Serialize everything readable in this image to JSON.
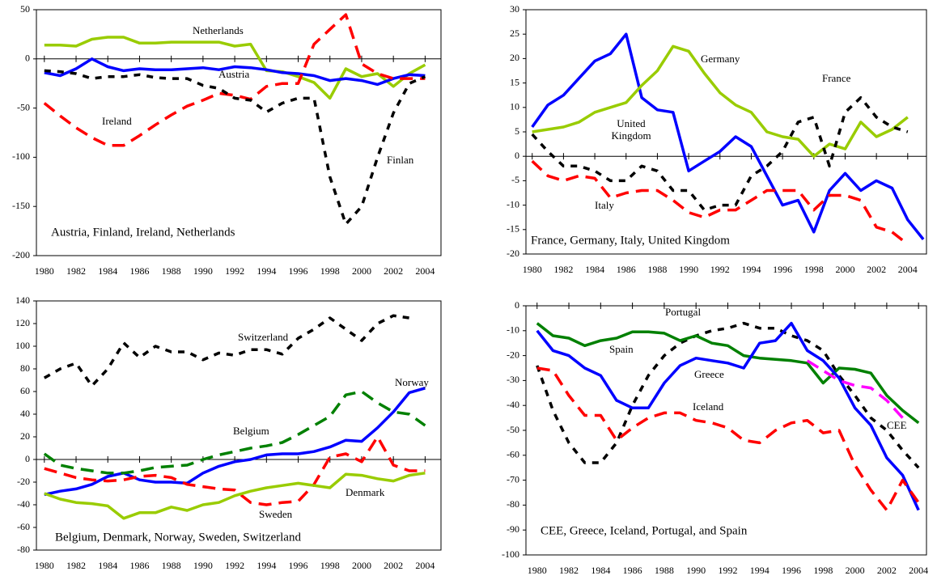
{
  "chart_data": [
    {
      "type": "line",
      "title": "Austria, Finland, Ireland, Netherlands",
      "x": [
        1980,
        1981,
        1982,
        1983,
        1984,
        1985,
        1986,
        1987,
        1988,
        1989,
        1990,
        1991,
        1992,
        1993,
        1994,
        1995,
        1996,
        1997,
        1998,
        1999,
        2000,
        2001,
        2002,
        2003,
        2004
      ],
      "xlim": [
        1979.5,
        2005
      ],
      "xticks": [
        1980,
        1982,
        1984,
        1986,
        1988,
        1990,
        1992,
        1994,
        1996,
        1998,
        2000,
        2002,
        2004
      ],
      "ylim": [
        -200,
        50
      ],
      "yticks": [
        50,
        0,
        -50,
        -100,
        -150,
        -200
      ],
      "series": [
        {
          "name": "Netherlands",
          "color": "#99cc00",
          "dashed": false,
          "values": [
            14,
            14,
            13,
            20,
            22,
            22,
            16,
            16,
            17,
            17,
            17,
            17,
            13,
            15,
            -12,
            -13,
            -18,
            -24,
            -40,
            -10,
            -18,
            -15,
            -28,
            -15,
            -6
          ]
        },
        {
          "name": "Austria",
          "color": "#0000ff",
          "dashed": false,
          "values": [
            -14,
            -17,
            -10,
            0,
            -8,
            -12,
            -10,
            -11,
            -11,
            -10,
            -9,
            -11,
            -8,
            -9,
            -11,
            -14,
            -15,
            -17,
            -22,
            -20,
            -22,
            -26,
            -20,
            -16,
            -17
          ]
        },
        {
          "name": "Ireland",
          "color": "#ff0000",
          "dashed": true,
          "values": [
            -45,
            -58,
            -70,
            -80,
            -88,
            -88,
            -78,
            -67,
            -57,
            -48,
            -42,
            -35,
            -37,
            -41,
            -28,
            -25,
            -25,
            15,
            30,
            45,
            -5,
            -15,
            -20,
            -20,
            -20
          ]
        },
        {
          "name": "Finlan",
          "color": "#000000",
          "dashed": true,
          "values": [
            -12,
            -13,
            -15,
            -20,
            -18,
            -18,
            -16,
            -19,
            -20,
            -20,
            -27,
            -30,
            -40,
            -42,
            -54,
            -45,
            -40,
            -40,
            -120,
            -168,
            -150,
            -100,
            -55,
            -25,
            -18
          ]
        }
      ]
    },
    {
      "type": "line",
      "title": "France, Germany, Italy, United Kingdom",
      "x": [
        1980,
        1981,
        1982,
        1983,
        1984,
        1985,
        1986,
        1987,
        1988,
        1989,
        1990,
        1991,
        1992,
        1993,
        1994,
        1995,
        1996,
        1997,
        1998,
        1999,
        2000,
        2001,
        2002,
        2003,
        2004,
        2005
      ],
      "xlim": [
        1979.6,
        2005.2
      ],
      "xticks": [
        1980,
        1982,
        1984,
        1986,
        1988,
        1990,
        1992,
        1994,
        1996,
        1998,
        2000,
        2002,
        2004
      ],
      "ylim": [
        -20,
        30
      ],
      "yticks": [
        30,
        25,
        20,
        15,
        10,
        5,
        0,
        -5,
        -10,
        -15,
        -20
      ],
      "series": [
        {
          "name": "United Kingdom",
          "color": "#0000ff",
          "dashed": false,
          "values": [
            6,
            10.5,
            12.5,
            16,
            19.5,
            21,
            25,
            12,
            9.5,
            9,
            -3,
            -1,
            1,
            4,
            2,
            -4,
            -10,
            -9,
            -15.5,
            -7,
            -3.5,
            -7,
            -5,
            -6.5,
            -13,
            -17
          ]
        },
        {
          "name": "Germany",
          "color": "#99cc00",
          "dashed": false,
          "values": [
            5,
            5.5,
            6,
            7,
            9,
            10,
            11,
            14.5,
            17.5,
            22.5,
            21.5,
            17,
            13,
            10.5,
            9,
            5,
            4,
            3.5,
            0,
            2.5,
            1.5,
            7,
            4,
            5.5,
            8,
            null
          ]
        },
        {
          "name": "France",
          "color": "#000000",
          "dashed": true,
          "values": [
            4.5,
            1,
            -2,
            -2,
            -3,
            -5,
            -5,
            -2,
            -3,
            -7,
            -7,
            -11,
            -10,
            -10,
            -4,
            -2,
            1,
            7,
            8,
            -2,
            9,
            12,
            8,
            6,
            5,
            null
          ]
        },
        {
          "name": "Italy",
          "color": "#ff0000",
          "dashed": true,
          "values": [
            -1,
            -4,
            -5,
            -4,
            -4.5,
            -8.5,
            -7.5,
            -7,
            -7,
            -9,
            -11.5,
            -12.5,
            -11,
            -11,
            -9,
            -7,
            -7,
            -7,
            -11,
            -8,
            -8,
            -9,
            -14.5,
            -15.5,
            -18,
            null
          ]
        }
      ]
    },
    {
      "type": "line",
      "title": "Belgium, Denmark, Norway, Sweden, Switzerland",
      "x": [
        1980,
        1981,
        1982,
        1983,
        1984,
        1985,
        1986,
        1987,
        1988,
        1989,
        1990,
        1991,
        1992,
        1993,
        1994,
        1995,
        1996,
        1997,
        1998,
        1999,
        2000,
        2001,
        2002,
        2003,
        2004
      ],
      "xlim": [
        1979.5,
        2005
      ],
      "xticks": [
        1980,
        1982,
        1984,
        1986,
        1988,
        1990,
        1992,
        1994,
        1996,
        1998,
        2000,
        2002,
        2004
      ],
      "ylim": [
        -80,
        140
      ],
      "yticks": [
        140,
        120,
        100,
        80,
        60,
        40,
        20,
        0,
        -20,
        -40,
        -60,
        -80
      ],
      "series": [
        {
          "name": "Switzerland",
          "color": "#000000",
          "dashed": true,
          "values": [
            72,
            80,
            85,
            65,
            80,
            103,
            90,
            100,
            95,
            95,
            88,
            94,
            92,
            97,
            97,
            93,
            107,
            115,
            125,
            115,
            105,
            120,
            127,
            125,
            null
          ]
        },
        {
          "name": "Norway",
          "color": "#0000ff",
          "dashed": false,
          "values": [
            -31,
            -28,
            -26,
            -22,
            -15,
            -12,
            -18,
            -20,
            -20,
            -21,
            -12,
            -6,
            -2,
            0,
            4,
            5,
            5,
            7,
            11,
            17,
            16,
            28,
            42,
            59,
            63
          ]
        },
        {
          "name": "Belgium",
          "color": "#008000",
          "dashed": true,
          "values": [
            5,
            -5,
            -8,
            -10,
            -12,
            -12,
            -10,
            -7,
            -6,
            -5,
            0,
            4,
            7,
            10,
            12,
            15,
            22,
            30,
            38,
            57,
            60,
            50,
            42,
            40,
            30
          ]
        },
        {
          "name": "Sweden",
          "color": "#ff0000",
          "dashed": true,
          "values": [
            -8,
            -12,
            -16,
            -18,
            -19,
            -18,
            -15,
            -14,
            -16,
            -22,
            -24,
            -26,
            -27,
            -38,
            -40,
            -38,
            -37,
            -22,
            2,
            5,
            -2,
            20,
            -5,
            -10,
            -10
          ]
        },
        {
          "name": "Denmark",
          "color": "#99cc00",
          "dashed": false,
          "values": [
            -30,
            -35,
            -38,
            -39,
            -41,
            -52,
            -47,
            -47,
            -42,
            -45,
            -40,
            -38,
            -32,
            -28,
            -25,
            -23,
            -21,
            -23,
            -25,
            -13,
            -14,
            -17,
            -19,
            -14,
            -12
          ]
        }
      ]
    },
    {
      "type": "line",
      "title": "CEE, Greece, Iceland, Portugal, and Spain",
      "x": [
        1980,
        1981,
        1982,
        1983,
        1984,
        1985,
        1986,
        1987,
        1988,
        1989,
        1990,
        1991,
        1992,
        1993,
        1994,
        1995,
        1996,
        1997,
        1998,
        1999,
        2000,
        2001,
        2002,
        2003,
        2004
      ],
      "xlim": [
        1979.3,
        2004.5
      ],
      "xticks": [
        1980,
        1982,
        1984,
        1986,
        1988,
        1990,
        1992,
        1994,
        1996,
        1998,
        2000,
        2002,
        2004
      ],
      "ylim": [
        -100,
        0
      ],
      "yticks": [
        0,
        -10,
        -20,
        -30,
        -40,
        -50,
        -60,
        -70,
        -80,
        -90,
        -100
      ],
      "series": [
        {
          "name": "Portugal",
          "color": "#000000",
          "dashed": true,
          "values": [
            -24,
            -42,
            -55,
            -63,
            -63,
            -55,
            -40,
            -28,
            -20,
            -15,
            -12,
            -10,
            -9,
            -7,
            -9,
            -9,
            -12,
            -14,
            -18,
            -28,
            -36,
            -45,
            -50,
            -58,
            -65
          ]
        },
        {
          "name": "Spain",
          "color": "#008000",
          "dashed": false,
          "values": [
            -7,
            -12,
            -13,
            -16,
            -14,
            -13,
            -10.5,
            -10.5,
            -11,
            -14,
            -12,
            -15,
            -16,
            -20,
            -21,
            -21.5,
            -22,
            -23,
            -31,
            -25,
            -25.5,
            -27,
            -36,
            -42,
            -47
          ]
        },
        {
          "name": "Greece",
          "color": "#0000ff",
          "dashed": false,
          "values": [
            -10,
            -18,
            -20,
            -25,
            -28,
            -38,
            -41,
            -41,
            -31,
            -24,
            -21,
            -22,
            -23,
            -25,
            -15,
            -14,
            -7,
            -18,
            -22,
            -29,
            -41,
            -48,
            -61,
            -68,
            -82
          ]
        },
        {
          "name": "Iceland",
          "color": "#ff0000",
          "dashed": true,
          "values": [
            -25,
            -26,
            -36,
            -44,
            -44,
            -54,
            -49,
            -45,
            -43,
            -43,
            -46,
            -47,
            -49,
            -54,
            -55,
            -50,
            -47,
            -46,
            -51,
            -50,
            -64,
            -74,
            -82,
            -70,
            -79
          ]
        },
        {
          "name": "CEE",
          "color": "#ff00ff",
          "dashed": true,
          "values": [
            null,
            null,
            null,
            null,
            null,
            null,
            null,
            null,
            null,
            null,
            null,
            null,
            null,
            null,
            null,
            null,
            null,
            -22,
            -26,
            -30,
            -32,
            -33,
            -38,
            -45,
            null
          ]
        }
      ]
    }
  ]
}
